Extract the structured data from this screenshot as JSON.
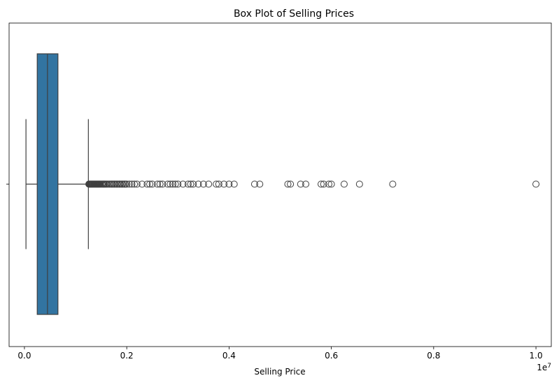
{
  "chart_data": {
    "type": "box",
    "title": "Box Plot of Selling Prices",
    "xlabel": "Selling Price",
    "ylabel": "",
    "x_scale_multiplier": "1e7",
    "xlim": [
      -0.03,
      1.03
    ],
    "xticks": [
      0.0,
      0.2,
      0.4,
      0.6,
      0.8,
      1.0
    ],
    "xtick_labels": [
      "0.0",
      "0.2",
      "0.4",
      "0.6",
      "0.8",
      "1.0"
    ],
    "grid": false,
    "legend": "none",
    "box": {
      "whisker_low": 0.003,
      "q1": 0.025,
      "median": 0.045,
      "q3": 0.0655,
      "whisker_high": 0.125,
      "outliers": [
        0.126,
        0.1265,
        0.127,
        0.1275,
        0.128,
        0.129,
        0.13,
        0.131,
        0.132,
        0.133,
        0.134,
        0.135,
        0.136,
        0.137,
        0.138,
        0.139,
        0.14,
        0.141,
        0.142,
        0.143,
        0.144,
        0.145,
        0.146,
        0.147,
        0.148,
        0.15,
        0.152,
        0.154,
        0.155,
        0.156,
        0.158,
        0.16,
        0.162,
        0.165,
        0.167,
        0.17,
        0.172,
        0.175,
        0.177,
        0.18,
        0.182,
        0.185,
        0.187,
        0.19,
        0.192,
        0.195,
        0.197,
        0.2,
        0.205,
        0.21,
        0.215,
        0.22,
        0.23,
        0.24,
        0.245,
        0.25,
        0.26,
        0.265,
        0.27,
        0.28,
        0.285,
        0.29,
        0.295,
        0.3,
        0.31,
        0.32,
        0.325,
        0.33,
        0.34,
        0.35,
        0.36,
        0.375,
        0.38,
        0.39,
        0.4,
        0.41,
        0.45,
        0.46,
        0.515,
        0.52,
        0.54,
        0.55,
        0.58,
        0.585,
        0.595,
        0.6,
        0.625,
        0.655,
        0.72,
        1.0
      ]
    },
    "colors": {
      "box_fill": "#3274a1",
      "box_edge": "#3f3f3f",
      "median": "#3f3f3f",
      "whisker": "#3f3f3f",
      "outlier_edge": "#3f3f3f",
      "axes": "#000000"
    }
  }
}
